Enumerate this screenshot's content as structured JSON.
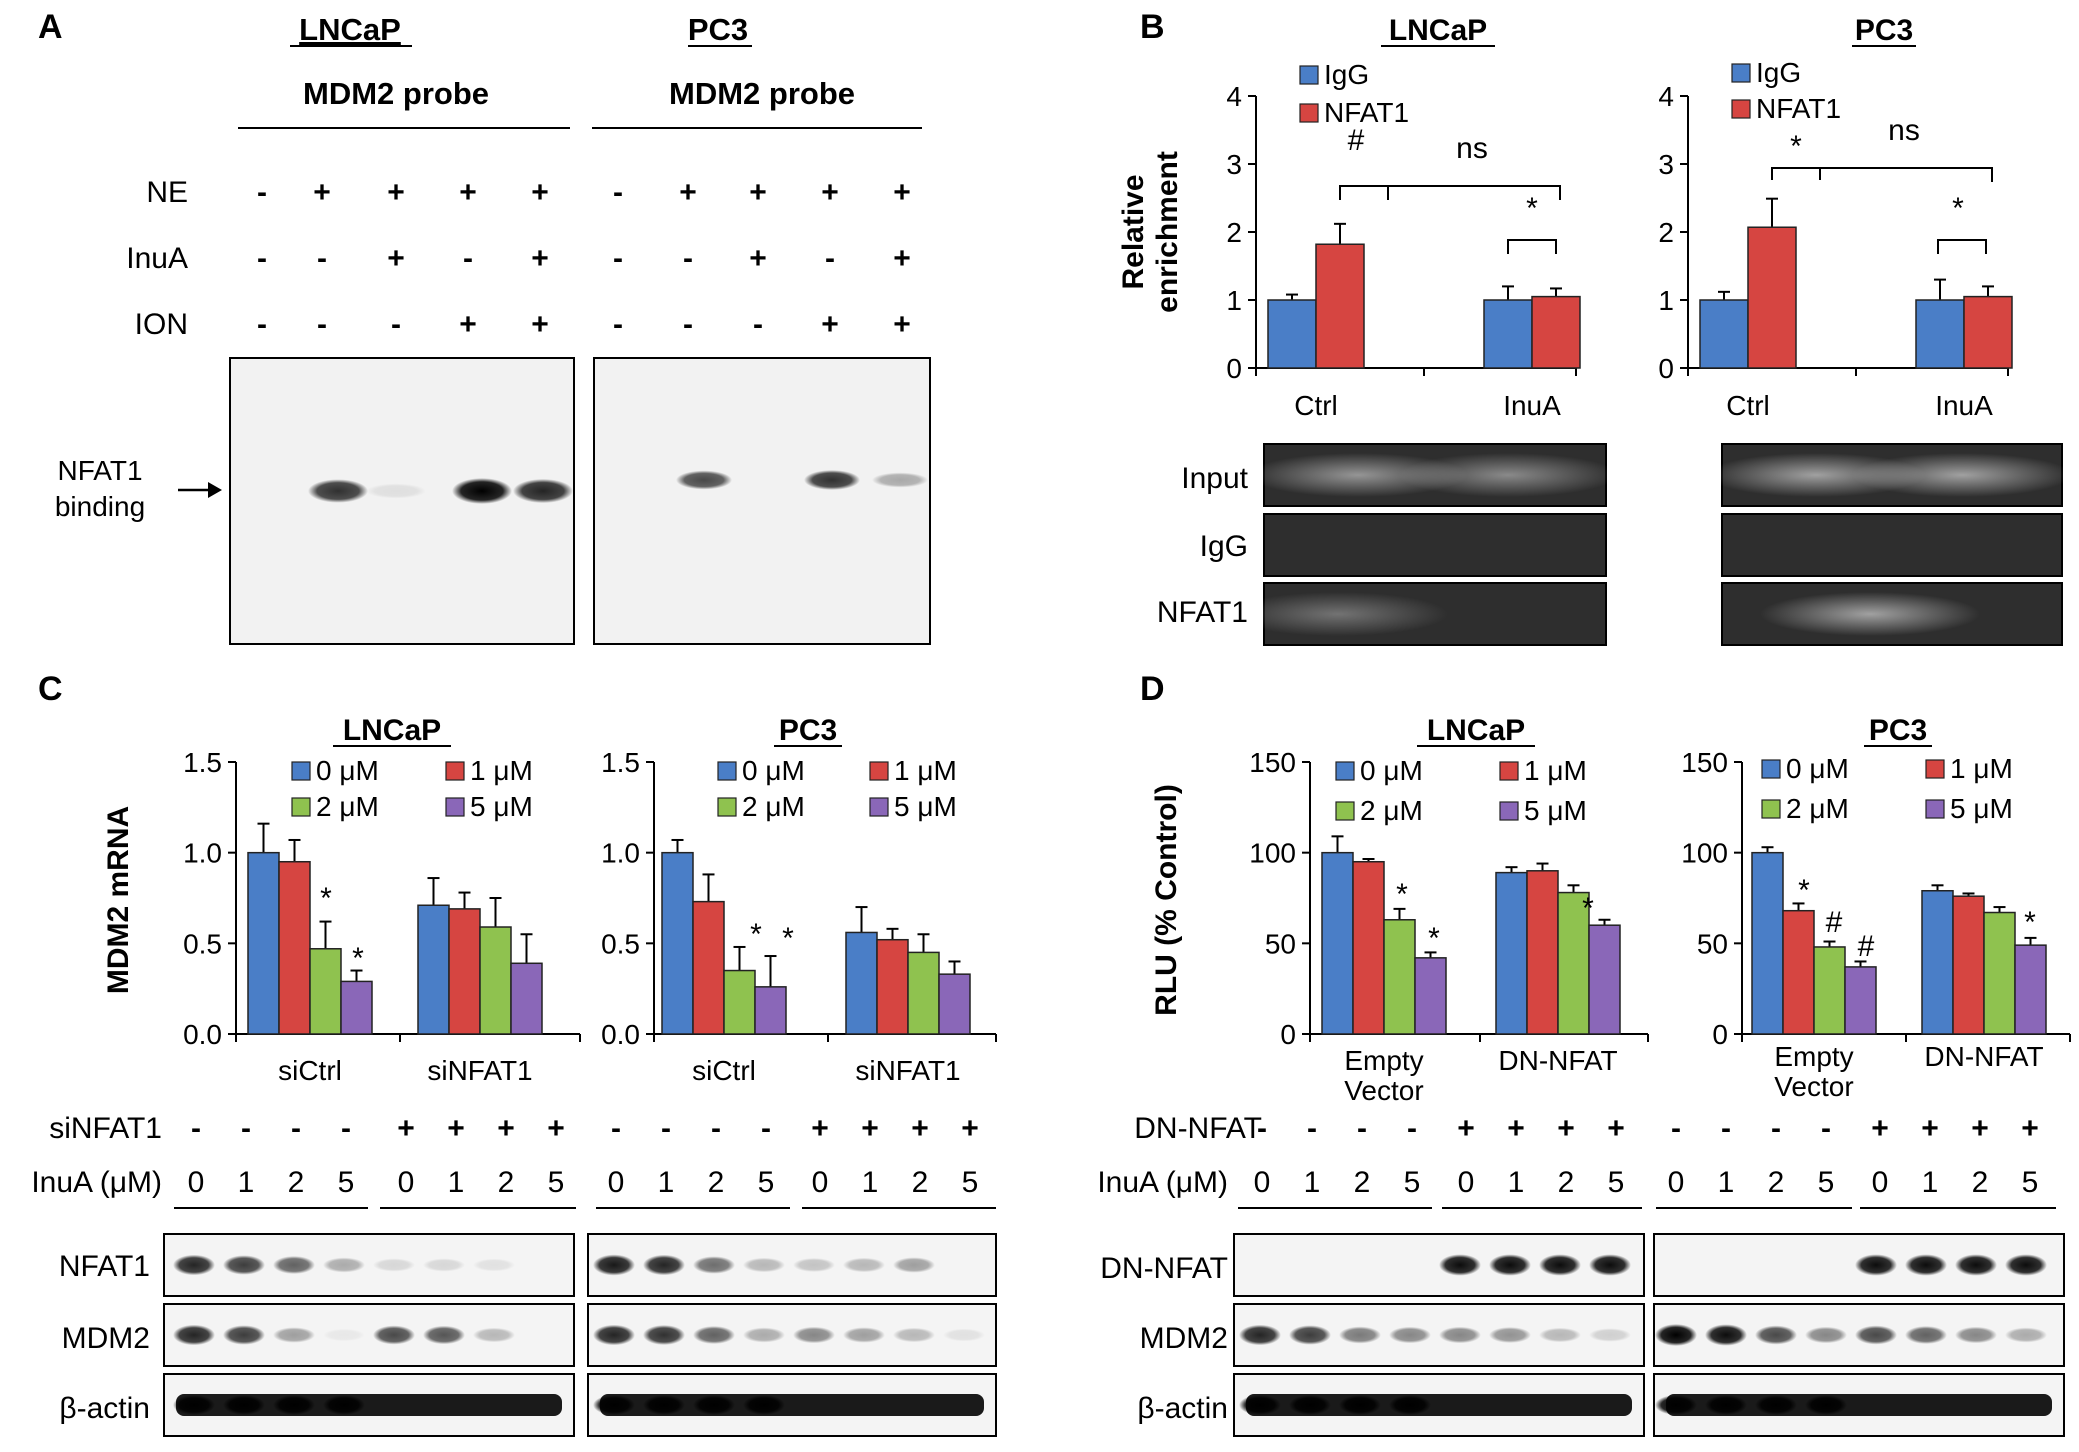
{
  "panels": {
    "A": {
      "letter": "A",
      "cells": [
        "LNCaP",
        "PC3"
      ],
      "probe": "MDM2 probe",
      "rows": [
        {
          "label": "NE",
          "lncap": [
            "-",
            "+",
            "+",
            "+",
            "+"
          ],
          "pc3": [
            "-",
            "+",
            "+",
            "+",
            "+"
          ]
        },
        {
          "label": "InuA",
          "lncap": [
            "-",
            "-",
            "+",
            "-",
            "+"
          ],
          "pc3": [
            "-",
            "-",
            "+",
            "-",
            "+"
          ]
        },
        {
          "label": "ION",
          "lncap": [
            "-",
            "-",
            "-",
            "+",
            "+"
          ],
          "pc3": [
            "-",
            "-",
            "-",
            "+",
            "+"
          ]
        }
      ],
      "band_label": [
        "NFAT1",
        "binding"
      ],
      "band_intensity": {
        "lncap": [
          0,
          0.8,
          0.08,
          1.0,
          0.85
        ],
        "pc3": [
          0,
          0.7,
          0,
          0.8,
          0.3
        ]
      }
    },
    "B": {
      "letter": "B",
      "gel_labels": [
        "Input",
        "IgG",
        "NFAT1"
      ]
    },
    "C": {
      "letter": "C",
      "row_labels": [
        "siNFAT1",
        "InuA (μM)"
      ],
      "sinfat1_signs": [
        "-",
        "-",
        "-",
        "-",
        "+",
        "+",
        "+",
        "+"
      ],
      "doses": [
        "0",
        "1",
        "2",
        "5",
        "0",
        "1",
        "2",
        "5"
      ],
      "blot_labels": [
        "NFAT1",
        "MDM2",
        "β-actin"
      ],
      "blots": {
        "lncap_NFAT1": [
          0.85,
          0.75,
          0.6,
          0.3,
          0.12,
          0.12,
          0.08,
          0
        ],
        "lncap_MDM2": [
          0.85,
          0.75,
          0.35,
          0.05,
          0.7,
          0.65,
          0.25,
          0
        ],
        "pc3_NFAT1": [
          0.9,
          0.85,
          0.55,
          0.25,
          0.2,
          0.25,
          0.35,
          0
        ],
        "pc3_MDM2": [
          0.85,
          0.8,
          0.6,
          0.3,
          0.45,
          0.35,
          0.25,
          0.08
        ]
      }
    },
    "D": {
      "letter": "D",
      "row_labels": [
        "DN-NFAT",
        "InuA (μM)"
      ],
      "dnnfat_signs": [
        "-",
        "-",
        "-",
        "-",
        "+",
        "+",
        "+",
        "+"
      ],
      "doses": [
        "0",
        "1",
        "2",
        "5",
        "0",
        "1",
        "2",
        "5"
      ],
      "blot_labels": [
        "DN-NFAT",
        "MDM2",
        "β-actin"
      ],
      "blots": {
        "lncap_DN": [
          0,
          0,
          0,
          0,
          0.95,
          0.95,
          0.95,
          0.95
        ],
        "lncap_MDM2": [
          0.85,
          0.75,
          0.5,
          0.45,
          0.45,
          0.4,
          0.25,
          0.15
        ],
        "pc3_DN": [
          0,
          0,
          0,
          0,
          0.95,
          0.95,
          0.95,
          0.95
        ],
        "pc3_MDM2": [
          1.0,
          0.95,
          0.7,
          0.45,
          0.7,
          0.6,
          0.45,
          0.3
        ]
      }
    }
  },
  "chart_data": [
    {
      "type": "bar",
      "panel": "B",
      "title": "LNCaP",
      "ylabel": "Relative enrichment",
      "ylim": [
        0,
        4
      ],
      "yticks": [
        0,
        1,
        2,
        3,
        4
      ],
      "categories": [
        "Ctrl",
        "InuA"
      ],
      "series": [
        {
          "name": "IgG",
          "color": "#4a7ec7",
          "values": [
            1.0,
            1.0
          ],
          "errors": [
            0.08,
            0.2
          ]
        },
        {
          "name": "NFAT1",
          "color": "#d64541",
          "values": [
            1.82,
            1.05
          ],
          "errors": [
            0.3,
            0.12
          ]
        }
      ],
      "annotations": [
        "#",
        "ns",
        "*"
      ]
    },
    {
      "type": "bar",
      "panel": "B",
      "title": "PC3",
      "ylim": [
        0,
        4
      ],
      "yticks": [
        0,
        1,
        2,
        3,
        4
      ],
      "categories": [
        "Ctrl",
        "InuA"
      ],
      "series": [
        {
          "name": "IgG",
          "color": "#4a7ec7",
          "values": [
            1.0,
            1.0
          ],
          "errors": [
            0.12,
            0.3
          ]
        },
        {
          "name": "NFAT1",
          "color": "#d64541",
          "values": [
            2.07,
            1.05
          ],
          "errors": [
            0.42,
            0.15
          ]
        }
      ],
      "annotations": [
        "*",
        "ns",
        "*"
      ]
    },
    {
      "type": "bar",
      "panel": "C",
      "title": "LNCaP",
      "ylabel": "MDM2 mRNA",
      "ylim": [
        0,
        1.5
      ],
      "yticks": [
        "0.0",
        "0.5",
        "1.0",
        "1.5"
      ],
      "categories": [
        "siCtrl",
        "siNFAT1"
      ],
      "series": [
        {
          "name": "0 μM",
          "color": "#4a7ec7",
          "values": [
            1.0,
            0.71
          ],
          "errors": [
            0.16,
            0.15
          ]
        },
        {
          "name": "1 μM",
          "color": "#d64541",
          "values": [
            0.95,
            0.69
          ],
          "errors": [
            0.12,
            0.09
          ]
        },
        {
          "name": "2 μM",
          "color": "#8fc24f",
          "values": [
            0.47,
            0.59
          ],
          "errors": [
            0.15,
            0.16
          ]
        },
        {
          "name": "5 μM",
          "color": "#8a67b8",
          "values": [
            0.29,
            0.39
          ],
          "errors": [
            0.06,
            0.16
          ]
        }
      ],
      "annotations": [
        "*",
        "*"
      ]
    },
    {
      "type": "bar",
      "panel": "C",
      "title": "PC3",
      "ylim": [
        0,
        1.5
      ],
      "yticks": [
        "0.0",
        "0.5",
        "1.0",
        "1.5"
      ],
      "categories": [
        "siCtrl",
        "siNFAT1"
      ],
      "series": [
        {
          "name": "0 μM",
          "color": "#4a7ec7",
          "values": [
            1.0,
            0.56
          ],
          "errors": [
            0.07,
            0.14
          ]
        },
        {
          "name": "1 μM",
          "color": "#d64541",
          "values": [
            0.73,
            0.52
          ],
          "errors": [
            0.15,
            0.06
          ]
        },
        {
          "name": "2 μM",
          "color": "#8fc24f",
          "values": [
            0.35,
            0.45
          ],
          "errors": [
            0.13,
            0.1
          ]
        },
        {
          "name": "5 μM",
          "color": "#8a67b8",
          "values": [
            0.26,
            0.33
          ],
          "errors": [
            0.17,
            0.07
          ]
        }
      ],
      "annotations": [
        "*",
        "*"
      ]
    },
    {
      "type": "bar",
      "panel": "D",
      "title": "LNCaP",
      "ylabel": "RLU (% Control)",
      "ylim": [
        0,
        150
      ],
      "yticks": [
        0,
        50,
        100,
        150
      ],
      "categories": [
        "Empty Vector",
        "DN-NFAT"
      ],
      "series": [
        {
          "name": "0 μM",
          "color": "#4a7ec7",
          "values": [
            100,
            89
          ],
          "errors": [
            9,
            3
          ]
        },
        {
          "name": "1 μM",
          "color": "#d64541",
          "values": [
            95,
            90
          ],
          "errors": [
            1.5,
            4
          ]
        },
        {
          "name": "2 μM",
          "color": "#8fc24f",
          "values": [
            63,
            78
          ],
          "errors": [
            6,
            4
          ]
        },
        {
          "name": "5 μM",
          "color": "#8a67b8",
          "values": [
            42,
            60
          ],
          "errors": [
            3,
            3
          ]
        }
      ],
      "annotations": [
        "*",
        "*",
        "*"
      ]
    },
    {
      "type": "bar",
      "panel": "D",
      "title": "PC3",
      "ylim": [
        0,
        150
      ],
      "yticks": [
        0,
        50,
        100,
        150
      ],
      "categories": [
        "Empty Vector",
        "DN-NFAT"
      ],
      "series": [
        {
          "name": "0 μM",
          "color": "#4a7ec7",
          "values": [
            100,
            79
          ],
          "errors": [
            3,
            3
          ]
        },
        {
          "name": "1 μM",
          "color": "#d64541",
          "values": [
            68,
            76
          ],
          "errors": [
            4,
            1.5
          ]
        },
        {
          "name": "2 μM",
          "color": "#8fc24f",
          "values": [
            48,
            67
          ],
          "errors": [
            3,
            3
          ]
        },
        {
          "name": "5 μM",
          "color": "#8a67b8",
          "values": [
            37,
            49
          ],
          "errors": [
            3,
            4
          ]
        }
      ],
      "annotations": [
        "*",
        "#",
        "#",
        "*"
      ]
    }
  ]
}
